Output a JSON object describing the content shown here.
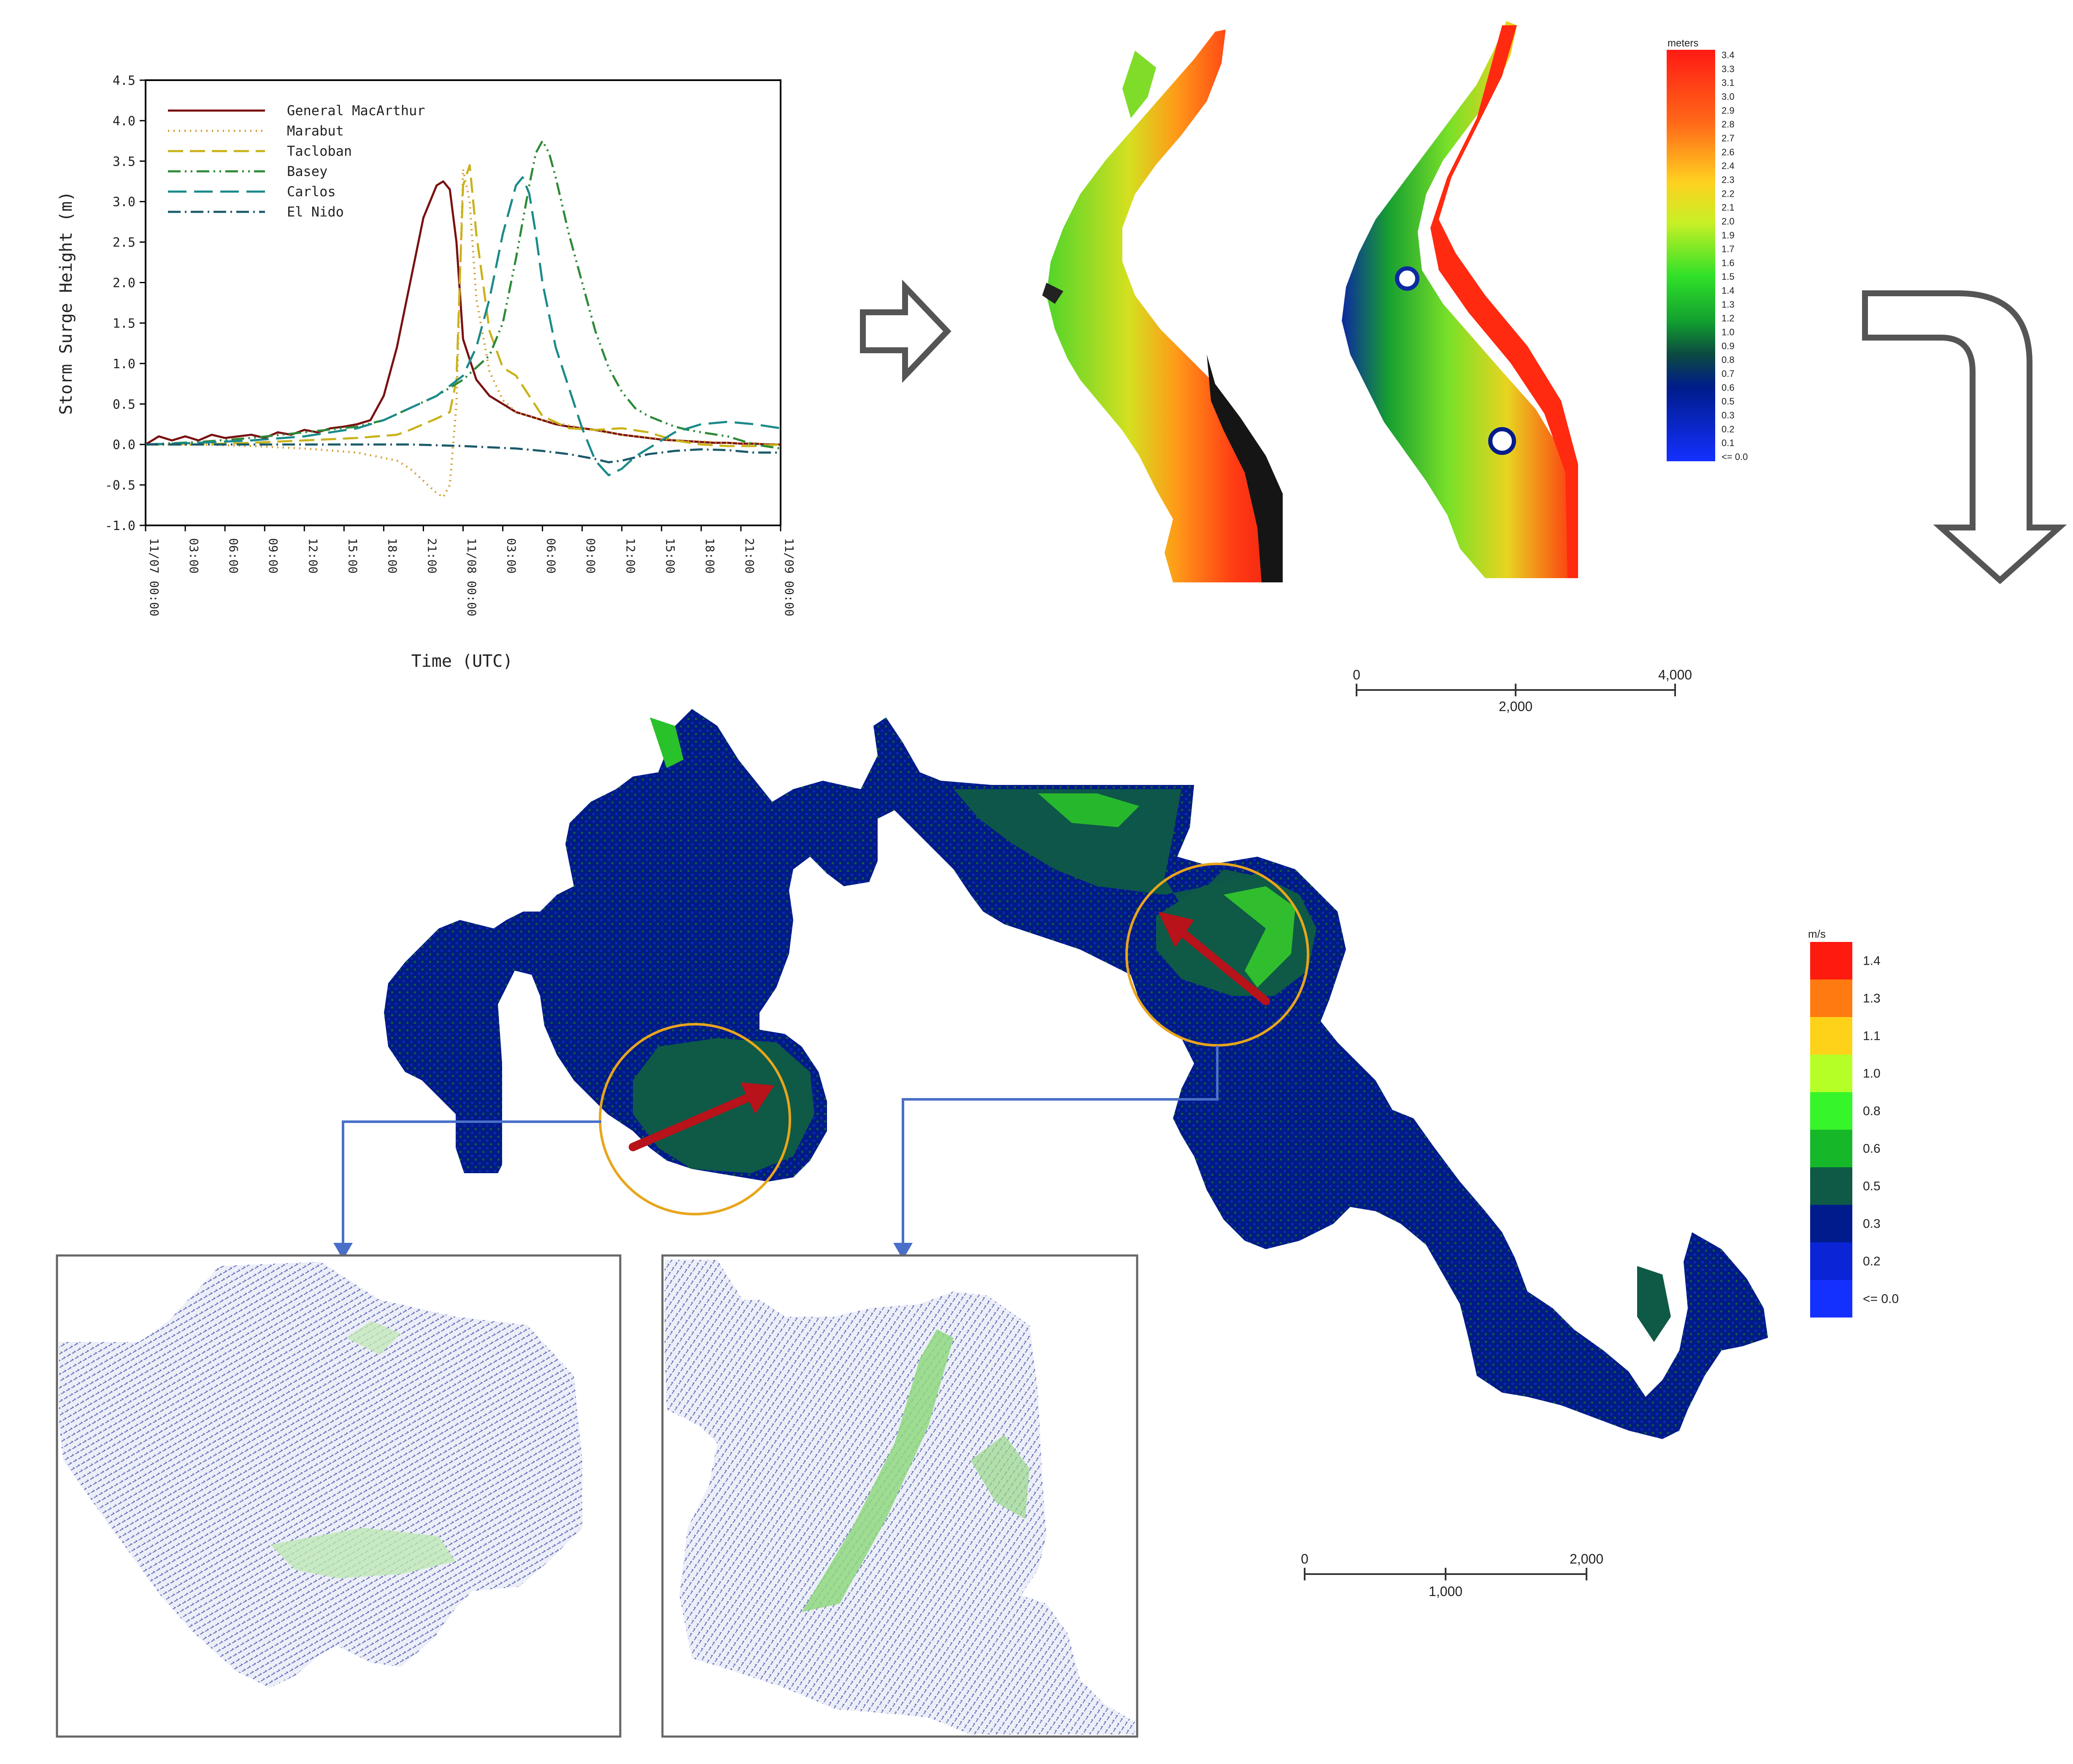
{
  "chart_data": {
    "type": "line",
    "title": "",
    "xlabel": "Time (UTC)",
    "ylabel": "Storm Surge Height (m)",
    "ylim": [
      -1.0,
      4.5
    ],
    "yticks": [
      "4.5",
      "4.0",
      "3.5",
      "3.0",
      "2.5",
      "2.0",
      "1.5",
      "1.0",
      "0.5",
      "0.0",
      "-0.5",
      "-1.0"
    ],
    "xticks": [
      "11/07 00:00",
      "03:00",
      "06:00",
      "09:00",
      "12:00",
      "15:00",
      "18:00",
      "21:00",
      "11/08 00:00",
      "03:00",
      "06:00",
      "09:00",
      "12:00",
      "15:00",
      "18:00",
      "21:00",
      "11/09 00:00"
    ],
    "x_hours": [
      0,
      48
    ],
    "legend_position": "top-left",
    "series": [
      {
        "name": "General MacArthur",
        "color": "#7a1010",
        "dash": "",
        "x": [
          0,
          1,
          2,
          3,
          4,
          5,
          6,
          7,
          8,
          9,
          10,
          11,
          12,
          13,
          14,
          15,
          16,
          17,
          18,
          19,
          20,
          21,
          22,
          22.5,
          23,
          23.5,
          24,
          25,
          26,
          27,
          28,
          29,
          30,
          31,
          32,
          33,
          34,
          35,
          36,
          37,
          38,
          39,
          40,
          41,
          42,
          43,
          44,
          45,
          46,
          47,
          48
        ],
        "y": [
          0.0,
          0.1,
          0.05,
          0.1,
          0.05,
          0.12,
          0.08,
          0.1,
          0.12,
          0.08,
          0.15,
          0.12,
          0.18,
          0.15,
          0.2,
          0.22,
          0.25,
          0.3,
          0.6,
          1.2,
          2.0,
          2.8,
          3.2,
          3.25,
          3.15,
          2.5,
          1.3,
          0.8,
          0.6,
          0.5,
          0.4,
          0.35,
          0.3,
          0.25,
          0.22,
          0.2,
          0.18,
          0.15,
          0.12,
          0.1,
          0.08,
          0.06,
          0.05,
          0.04,
          0.03,
          0.02,
          0.02,
          0.01,
          0.01,
          0.0,
          0.0
        ]
      },
      {
        "name": "Marabut",
        "color": "#d49a2a",
        "dash": "3,10",
        "x": [
          0,
          4,
          8,
          12,
          16,
          19,
          20,
          21,
          22,
          22.5,
          23,
          23.5,
          24,
          24.5,
          25,
          26,
          27,
          28,
          30,
          33,
          36,
          40,
          44,
          48
        ],
        "y": [
          0.0,
          0.0,
          -0.02,
          -0.05,
          -0.1,
          -0.2,
          -0.3,
          -0.45,
          -0.6,
          -0.65,
          -0.5,
          0.5,
          3.4,
          3.0,
          1.8,
          0.9,
          0.55,
          0.4,
          0.3,
          0.2,
          0.12,
          0.05,
          0.02,
          0.0
        ]
      },
      {
        "name": "Tacloban",
        "color": "#c9b21a",
        "dash": "36,16",
        "x": [
          0,
          4,
          8,
          12,
          16,
          19,
          20,
          21,
          22,
          23,
          23.5,
          24,
          24.5,
          25,
          26,
          27,
          28,
          29,
          30,
          32,
          34,
          36,
          38,
          40,
          42,
          44,
          46,
          48
        ],
        "y": [
          0.0,
          0.0,
          0.02,
          0.05,
          0.08,
          0.12,
          0.18,
          0.25,
          0.32,
          0.4,
          0.8,
          3.2,
          3.45,
          2.6,
          1.4,
          0.95,
          0.85,
          0.6,
          0.35,
          0.2,
          0.18,
          0.2,
          0.15,
          0.05,
          0.0,
          -0.02,
          -0.02,
          0.0
        ]
      },
      {
        "name": "Basey",
        "color": "#2e8a38",
        "dash": "30,10,4,10,4,10",
        "x": [
          0,
          4,
          8,
          12,
          16,
          18,
          20,
          22,
          24,
          26,
          27,
          28,
          29,
          29.5,
          30,
          30.5,
          31,
          32,
          33,
          34,
          35,
          36,
          37,
          38,
          40,
          41,
          42,
          44,
          45,
          46,
          48
        ],
        "y": [
          0.0,
          0.03,
          0.08,
          0.15,
          0.22,
          0.3,
          0.45,
          0.6,
          0.8,
          1.1,
          1.5,
          2.3,
          3.2,
          3.6,
          3.75,
          3.6,
          3.3,
          2.6,
          2.0,
          1.4,
          0.95,
          0.65,
          0.45,
          0.35,
          0.22,
          0.18,
          0.15,
          0.1,
          0.05,
          0.0,
          -0.05
        ]
      },
      {
        "name": "Carlos",
        "color": "#1a8a8a",
        "dash": "44,18",
        "x": [
          0,
          4,
          8,
          12,
          16,
          18,
          20,
          22,
          24,
          25,
          26,
          27,
          28,
          28.5,
          29,
          29.5,
          30,
          31,
          32,
          33,
          34,
          35,
          36,
          37,
          38,
          39,
          40,
          42,
          44,
          46,
          48
        ],
        "y": [
          0.0,
          0.02,
          0.05,
          0.1,
          0.2,
          0.3,
          0.45,
          0.6,
          0.85,
          1.2,
          1.8,
          2.6,
          3.2,
          3.3,
          3.1,
          2.6,
          2.0,
          1.2,
          0.7,
          0.2,
          -0.2,
          -0.38,
          -0.3,
          -0.15,
          -0.05,
          0.05,
          0.15,
          0.25,
          0.28,
          0.25,
          0.2
        ]
      },
      {
        "name": "El Nido",
        "color": "#1a5a6a",
        "dash": "30,10,4,10",
        "x": [
          0,
          4,
          8,
          12,
          16,
          20,
          24,
          28,
          30,
          32,
          34,
          35,
          36,
          38,
          40,
          42,
          44,
          46,
          48
        ],
        "y": [
          0.0,
          0.0,
          0.0,
          0.0,
          0.0,
          0.0,
          -0.02,
          -0.05,
          -0.08,
          -0.12,
          -0.18,
          -0.22,
          -0.2,
          -0.12,
          -0.08,
          -0.06,
          -0.07,
          -0.1,
          -0.1
        ]
      }
    ]
  },
  "flow": {
    "arrow_right_icon": "arrow-right-icon",
    "arrow_turn_down_icon": "arrow-turn-down-icon"
  },
  "surge_map": {
    "legend_title": "meters",
    "legend_labels": [
      "3.4",
      "3.3",
      "3.1",
      "3.0",
      "2.9",
      "2.8",
      "2.7",
      "2.6",
      "2.4",
      "2.3",
      "2.2",
      "2.1",
      "2.0",
      "1.9",
      "1.7",
      "1.6",
      "1.5",
      "1.4",
      "1.3",
      "1.2",
      "1.0",
      "0.9",
      "0.8",
      "0.7",
      "0.6",
      "0.5",
      "0.3",
      "0.2",
      "0.1",
      "<= 0.0"
    ],
    "scale_labels": [
      "0",
      "2,000",
      "4,000"
    ]
  },
  "velocity_map": {
    "legend_title": "m/s",
    "legend_labels": [
      "1.4",
      "1.3",
      "1.1",
      "1.0",
      "0.8",
      "0.6",
      "0.5",
      "0.3",
      "0.2",
      "<= 0.0"
    ],
    "legend_colors": [
      "#ff1a0f",
      "#ff7a10",
      "#ffd21a",
      "#b6ff26",
      "#36f52a",
      "#16b82a",
      "#0e5a46",
      "#001c8c",
      "#0a24d6",
      "#1430ff"
    ],
    "scale_labels": [
      "0",
      "2,000",
      "1,000"
    ]
  },
  "colors": {
    "arrow_red": "#b8121a",
    "circle_orange": "#e8a51c",
    "connector_blue": "#4a6fc8"
  }
}
